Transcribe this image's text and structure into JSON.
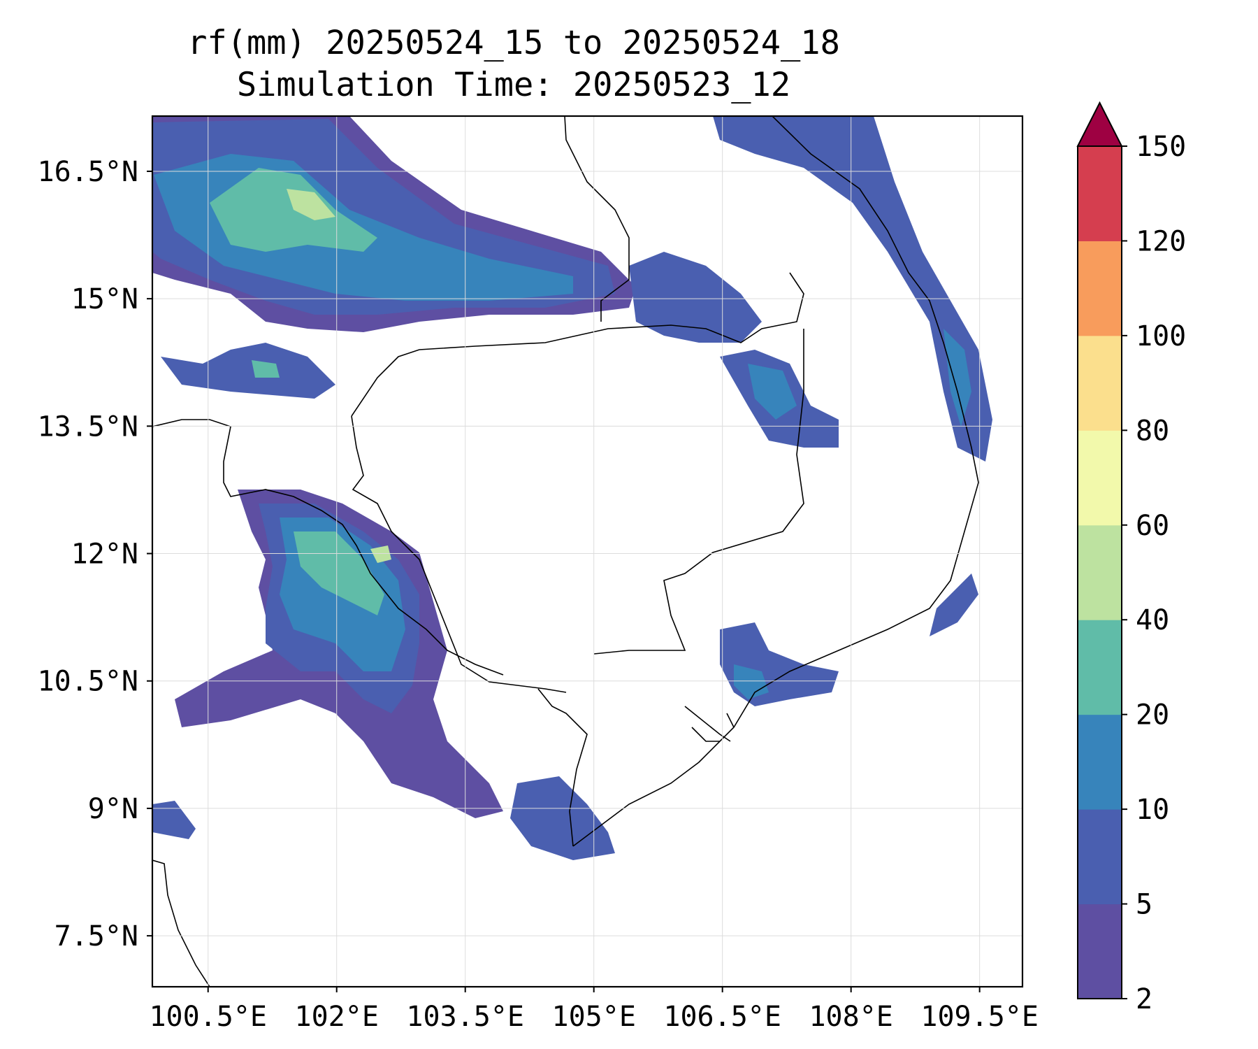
{
  "title": {
    "line1": "rf(mm) 20250524_15 to 20250524_18",
    "line2": "Simulation Time: 20250523_12"
  },
  "map": {
    "lon_range": [
      99.85,
      110.0
    ],
    "lat_range": [
      6.9,
      17.15
    ],
    "x_ticks": [
      {
        "value": 100.5,
        "label": "100.5°E"
      },
      {
        "value": 102.0,
        "label": "102°E"
      },
      {
        "value": 103.5,
        "label": "103.5°E"
      },
      {
        "value": 105.0,
        "label": "105°E"
      },
      {
        "value": 106.5,
        "label": "106.5°E"
      },
      {
        "value": 108.0,
        "label": "108°E"
      },
      {
        "value": 109.5,
        "label": "109.5°E"
      }
    ],
    "y_ticks": [
      {
        "value": 16.5,
        "label": "16.5°N"
      },
      {
        "value": 15.0,
        "label": "15°N"
      },
      {
        "value": 13.5,
        "label": "13.5°N"
      },
      {
        "value": 12.0,
        "label": "12°N"
      },
      {
        "value": 10.5,
        "label": "10.5°N"
      },
      {
        "value": 9.0,
        "label": "9°N"
      },
      {
        "value": 7.5,
        "label": "7.5°N"
      }
    ],
    "grid": true
  },
  "colorbar": {
    "levels": [
      {
        "label": "2",
        "color": "#5e4fa2"
      },
      {
        "label": "5",
        "color": "#4a5fb0"
      },
      {
        "label": "10",
        "color": "#3784bb"
      },
      {
        "label": "20",
        "color": "#60bca8"
      },
      {
        "label": "40",
        "color": "#bde2a0"
      },
      {
        "label": "60",
        "color": "#f2f9ab"
      },
      {
        "label": "80",
        "color": "#fbdf8d"
      },
      {
        "label": "100",
        "color": "#f89c5c"
      },
      {
        "label": "120",
        "color": "#d53e4f"
      },
      {
        "label": "150",
        "color": "#9e0142"
      }
    ],
    "extend": "max"
  }
}
